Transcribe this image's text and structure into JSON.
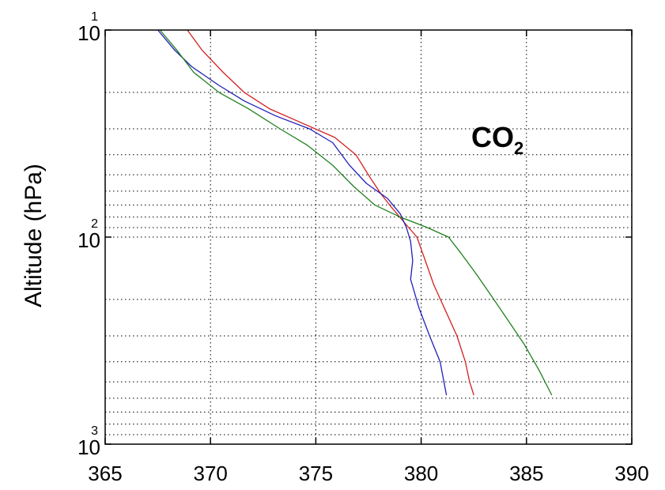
{
  "chart_data": {
    "type": "line",
    "title": "",
    "xlabel": "",
    "ylabel": "Altitude (hPa)",
    "xlim": [
      365,
      390
    ],
    "ylim": [
      10,
      1000
    ],
    "y_scale": "log",
    "y_reversed": true,
    "grid": true,
    "x_ticks": [
      365,
      370,
      375,
      380,
      385,
      390
    ],
    "x_tick_labels": [
      "365",
      "370",
      "375",
      "380",
      "385",
      "390"
    ],
    "y_ticks": [
      {
        "value": 10,
        "base": "10",
        "exponent": "1"
      },
      {
        "value": 100,
        "base": "10",
        "exponent": "2"
      },
      {
        "value": 1000,
        "base": "10",
        "exponent": "3"
      }
    ],
    "annotation": {
      "text": "CO",
      "subscript": "2"
    },
    "series": [
      {
        "color": "#d42020",
        "points": [
          [
            368.9,
            10
          ],
          [
            369.6,
            12.5
          ],
          [
            370.6,
            16
          ],
          [
            371.6,
            20
          ],
          [
            372.8,
            24
          ],
          [
            374.3,
            28
          ],
          [
            375.9,
            33
          ],
          [
            376.9,
            40
          ],
          [
            377.6,
            52
          ],
          [
            378.1,
            62
          ],
          [
            378.6,
            72
          ],
          [
            379.2,
            85
          ],
          [
            379.8,
            100
          ],
          [
            380.2,
            130
          ],
          [
            380.6,
            170
          ],
          [
            381.1,
            220
          ],
          [
            381.7,
            300
          ],
          [
            382.1,
            400
          ],
          [
            382.3,
            500
          ],
          [
            382.5,
            580
          ]
        ]
      },
      {
        "color": "#2020b8",
        "points": [
          [
            367.5,
            10
          ],
          [
            368.3,
            12.5
          ],
          [
            369.1,
            15
          ],
          [
            370.4,
            18.5
          ],
          [
            371.6,
            22
          ],
          [
            373.1,
            26
          ],
          [
            374.7,
            30
          ],
          [
            375.8,
            35
          ],
          [
            376.6,
            45
          ],
          [
            377.4,
            55
          ],
          [
            378.4,
            65
          ],
          [
            379.0,
            77
          ],
          [
            379.3,
            90
          ],
          [
            379.5,
            105
          ],
          [
            379.6,
            130
          ],
          [
            379.5,
            160
          ],
          [
            379.9,
            220
          ],
          [
            380.4,
            300
          ],
          [
            380.9,
            400
          ],
          [
            381.2,
            580
          ]
        ]
      },
      {
        "color": "#208020",
        "points": [
          [
            367.6,
            10
          ],
          [
            368.4,
            12.5
          ],
          [
            369.2,
            16
          ],
          [
            370.4,
            20
          ],
          [
            371.8,
            24
          ],
          [
            373.3,
            30
          ],
          [
            374.6,
            36
          ],
          [
            375.8,
            45
          ],
          [
            376.8,
            57
          ],
          [
            377.8,
            70
          ],
          [
            379.0,
            80
          ],
          [
            380.3,
            90
          ],
          [
            381.3,
            100
          ],
          [
            381.9,
            120
          ],
          [
            382.6,
            150
          ],
          [
            383.3,
            190
          ],
          [
            384.1,
            250
          ],
          [
            384.9,
            330
          ],
          [
            385.6,
            440
          ],
          [
            386.2,
            580
          ]
        ]
      }
    ]
  }
}
